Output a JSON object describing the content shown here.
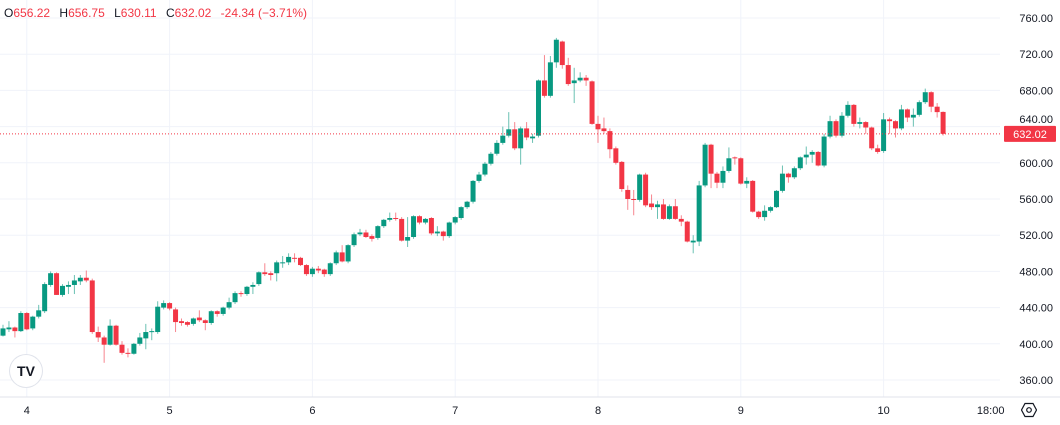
{
  "legend": {
    "o_label": "O",
    "open": "656.22",
    "h_label": "H",
    "high": "656.75",
    "l_label": "L",
    "low": "630.11",
    "c_label": "C",
    "close": "632.02",
    "change": "-24.34 (−3.71%)"
  },
  "logo_text": "TV",
  "icons": {
    "logo": "tradingview-logo-icon",
    "settings": "gear-icon"
  },
  "colors": {
    "up": "#089981",
    "down": "#f23645",
    "grid": "#f0f3fa",
    "price_line": "#f23645"
  },
  "chart_data": {
    "type": "candlestick",
    "interval": "1h",
    "ylim": [
      345,
      775
    ],
    "y_ticks": [
      "360.00",
      "400.00",
      "440.00",
      "480.00",
      "520.00",
      "560.00",
      "600.00",
      "640.00",
      "680.00",
      "720.00",
      "760.00"
    ],
    "x_ticks": [
      "4",
      "5",
      "6",
      "7",
      "8",
      "9",
      "10",
      "18:00"
    ],
    "grid": true,
    "last_price": 632.02,
    "last_price_label": "632.02",
    "ohlc_fields": [
      "open",
      "high",
      "low",
      "close"
    ],
    "candles": [
      [
        409,
        421,
        408,
        417
      ],
      [
        416,
        425,
        413,
        418
      ],
      [
        418,
        419,
        407,
        414
      ],
      [
        414,
        436,
        413,
        434
      ],
      [
        434,
        435,
        415,
        416
      ],
      [
        417,
        431,
        415,
        430
      ],
      [
        430,
        443,
        428,
        437
      ],
      [
        436,
        468,
        434,
        466
      ],
      [
        465,
        480,
        463,
        478
      ],
      [
        478,
        479,
        454,
        454
      ],
      [
        454,
        466,
        452,
        464
      ],
      [
        463,
        469,
        455,
        465
      ],
      [
        465,
        476,
        455,
        470
      ],
      [
        469,
        476,
        465,
        473
      ],
      [
        473,
        481,
        468,
        470
      ],
      [
        470,
        472,
        411,
        413
      ],
      [
        413,
        419,
        402,
        407
      ],
      [
        407,
        409,
        379,
        399
      ],
      [
        399,
        427,
        398,
        420
      ],
      [
        420,
        421,
        398,
        399
      ],
      [
        399,
        403,
        388,
        390
      ],
      [
        390,
        395,
        385,
        389
      ],
      [
        389,
        401,
        388,
        400
      ],
      [
        400,
        412,
        398,
        407
      ],
      [
        406,
        422,
        394,
        413
      ],
      [
        413,
        417,
        404,
        414
      ],
      [
        413,
        447,
        411,
        441
      ],
      [
        440,
        448,
        438,
        445
      ],
      [
        445,
        446,
        437,
        439
      ],
      [
        438,
        440,
        413,
        424
      ],
      [
        425,
        428,
        420,
        423
      ],
      [
        424,
        425,
        419,
        421
      ],
      [
        422,
        429,
        420,
        428
      ],
      [
        429,
        437,
        424,
        426
      ],
      [
        426,
        427,
        415,
        423
      ],
      [
        423,
        437,
        421,
        436
      ],
      [
        436,
        437,
        430,
        433
      ],
      [
        433,
        441,
        431,
        440
      ],
      [
        440,
        451,
        438,
        446
      ],
      [
        446,
        458,
        444,
        456
      ],
      [
        456,
        458,
        452,
        455
      ],
      [
        455,
        464,
        453,
        463
      ],
      [
        463,
        468,
        455,
        465
      ],
      [
        466,
        480,
        464,
        479
      ],
      [
        479,
        489,
        475,
        477
      ],
      [
        478,
        480,
        470,
        476
      ],
      [
        478,
        492,
        469,
        490
      ],
      [
        489,
        497,
        484,
        490
      ],
      [
        490,
        500,
        487,
        496
      ],
      [
        495,
        500,
        490,
        494
      ],
      [
        495,
        496,
        486,
        487
      ],
      [
        487,
        488,
        475,
        477
      ],
      [
        477,
        485,
        474,
        483
      ],
      [
        483,
        486,
        478,
        481
      ],
      [
        482,
        483,
        474,
        477
      ],
      [
        477,
        490,
        475,
        489
      ],
      [
        489,
        503,
        487,
        501
      ],
      [
        501,
        509,
        490,
        491
      ],
      [
        491,
        510,
        489,
        509
      ],
      [
        509,
        523,
        507,
        521
      ],
      [
        521,
        527,
        519,
        523
      ],
      [
        523,
        526,
        517,
        518
      ],
      [
        519,
        521,
        513,
        516
      ],
      [
        517,
        531,
        515,
        530
      ],
      [
        530,
        538,
        528,
        537
      ],
      [
        537,
        545,
        535,
        539
      ],
      [
        539,
        545,
        536,
        538
      ],
      [
        538,
        540,
        513,
        514
      ],
      [
        514,
        540,
        507,
        518
      ],
      [
        518,
        542,
        516,
        541
      ],
      [
        541,
        542,
        532,
        534
      ],
      [
        534,
        539,
        532,
        538
      ],
      [
        539,
        540,
        520,
        522
      ],
      [
        522,
        530,
        519,
        524
      ],
      [
        524,
        525,
        514,
        519
      ],
      [
        519,
        535,
        517,
        534
      ],
      [
        534,
        541,
        532,
        540
      ],
      [
        539,
        552,
        537,
        551
      ],
      [
        551,
        558,
        549,
        557
      ],
      [
        557,
        581,
        555,
        580
      ],
      [
        580,
        590,
        578,
        587
      ],
      [
        587,
        601,
        585,
        599
      ],
      [
        599,
        612,
        597,
        610
      ],
      [
        610,
        625,
        608,
        622
      ],
      [
        622,
        640,
        620,
        630
      ],
      [
        630,
        656,
        628,
        637
      ],
      [
        637,
        645,
        614,
        616
      ],
      [
        616,
        640,
        598,
        638
      ],
      [
        638,
        645,
        625,
        628
      ],
      [
        627,
        632,
        622,
        629
      ],
      [
        630,
        692,
        628,
        691
      ],
      [
        691,
        719,
        672,
        674
      ],
      [
        674,
        718,
        672,
        711
      ],
      [
        711,
        738,
        705,
        736
      ],
      [
        734,
        735,
        704,
        708
      ],
      [
        708,
        716,
        685,
        687
      ],
      [
        688,
        705,
        666,
        691
      ],
      [
        691,
        700,
        689,
        694
      ],
      [
        694,
        697,
        685,
        691
      ],
      [
        690,
        691,
        642,
        643
      ],
      [
        643,
        652,
        622,
        637
      ],
      [
        638,
        650,
        632,
        635
      ],
      [
        635,
        638,
        605,
        615
      ],
      [
        616,
        618,
        598,
        600
      ],
      [
        601,
        602,
        568,
        571
      ],
      [
        570,
        575,
        548,
        560
      ],
      [
        560,
        570,
        542,
        559
      ],
      [
        559,
        588,
        557,
        587
      ],
      [
        587,
        589,
        551,
        553
      ],
      [
        555,
        565,
        548,
        551
      ],
      [
        551,
        558,
        538,
        554
      ],
      [
        554,
        560,
        537,
        538
      ],
      [
        538,
        554,
        537,
        552
      ],
      [
        552,
        560,
        537,
        538
      ],
      [
        538,
        542,
        530,
        535
      ],
      [
        535,
        536,
        512,
        513
      ],
      [
        512,
        520,
        500,
        514
      ],
      [
        513,
        580,
        508,
        575
      ],
      [
        575,
        622,
        573,
        620
      ],
      [
        620,
        621,
        572,
        588
      ],
      [
        588,
        590,
        572,
        578
      ],
      [
        578,
        596,
        572,
        591
      ],
      [
        591,
        617,
        589,
        605
      ],
      [
        606,
        607,
        598,
        605
      ],
      [
        605,
        606,
        576,
        577
      ],
      [
        577,
        584,
        572,
        580
      ],
      [
        580,
        581,
        545,
        546
      ],
      [
        546,
        547,
        538,
        540
      ],
      [
        540,
        553,
        536,
        547
      ],
      [
        547,
        552,
        545,
        551
      ],
      [
        551,
        570,
        550,
        569
      ],
      [
        569,
        597,
        567,
        588
      ],
      [
        588,
        589,
        578,
        584
      ],
      [
        584,
        596,
        582,
        594
      ],
      [
        594,
        607,
        592,
        606
      ],
      [
        606,
        618,
        598,
        609
      ],
      [
        609,
        614,
        600,
        612
      ],
      [
        612,
        613,
        596,
        597
      ],
      [
        597,
        632,
        595,
        629
      ],
      [
        629,
        652,
        627,
        646
      ],
      [
        646,
        648,
        628,
        630
      ],
      [
        630,
        656,
        628,
        652
      ],
      [
        652,
        668,
        650,
        664
      ],
      [
        664,
        665,
        640,
        643
      ],
      [
        643,
        650,
        638,
        645
      ],
      [
        645,
        646,
        632,
        639
      ],
      [
        639,
        640,
        614,
        616
      ],
      [
        616,
        620,
        610,
        612
      ],
      [
        613,
        655,
        611,
        648
      ],
      [
        648,
        650,
        632,
        646
      ],
      [
        646,
        647,
        628,
        638
      ],
      [
        638,
        664,
        636,
        659
      ],
      [
        659,
        660,
        645,
        650
      ],
      [
        650,
        660,
        640,
        653
      ],
      [
        653,
        669,
        651,
        667
      ],
      [
        667,
        682,
        665,
        678
      ],
      [
        678,
        679,
        656,
        662
      ],
      [
        662,
        666,
        650,
        656
      ],
      [
        656.22,
        656.75,
        630.11,
        632.02
      ]
    ]
  }
}
